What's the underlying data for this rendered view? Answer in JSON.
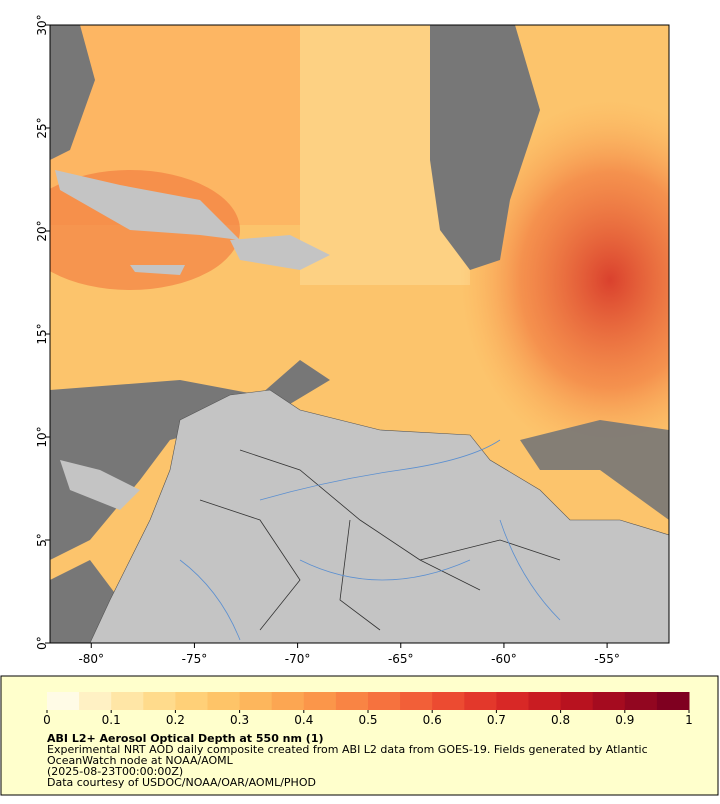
{
  "map": {
    "xlim": [
      -82,
      -52
    ],
    "ylim": [
      0,
      30
    ],
    "xticks": [
      {
        "value": -80,
        "label": "-80°"
      },
      {
        "value": -75,
        "label": "-75°"
      },
      {
        "value": -70,
        "label": "-70°"
      },
      {
        "value": -65,
        "label": "-65°"
      },
      {
        "value": -60,
        "label": "-60°"
      },
      {
        "value": -55,
        "label": "-55°"
      }
    ],
    "yticks": [
      {
        "value": 0,
        "label": "0°"
      },
      {
        "value": 5,
        "label": "5°"
      },
      {
        "value": 10,
        "label": "10°"
      },
      {
        "value": 15,
        "label": "15°"
      },
      {
        "value": 20,
        "label": "20°"
      },
      {
        "value": 25,
        "label": "25°"
      },
      {
        "value": 30,
        "label": "30°"
      }
    ],
    "colorbar": {
      "lim": [
        0,
        1
      ],
      "ticks": [
        0,
        0.1,
        0.2,
        0.3,
        0.4,
        0.5,
        0.6,
        0.7,
        0.8,
        0.9,
        1
      ],
      "colors": [
        "#fffbe6",
        "#fff1c4",
        "#ffe6a6",
        "#ffdb8c",
        "#ffd078",
        "#fec468",
        "#fdb65c",
        "#fca652",
        "#fb964a",
        "#f98444",
        "#f6723e",
        "#f25f38",
        "#ec4b31",
        "#e3382b",
        "#d82826",
        "#c91c22",
        "#b8121f",
        "#a50b1f",
        "#920620",
        "#7f0020"
      ]
    }
  },
  "caption": {
    "title": "ABI L2+ Aerosol Optical Depth at 550 nm (1)",
    "lines": [
      "Experimental NRT AOD daily composite created from ABI L2 data from GOES-19. Fields generated by Atlantic",
      "OceanWatch node at NOAA/AOML",
      "(2025-08-23T00:00:00Z)",
      "Data courtesy of USDOC/NOAA/OAR/AOML/PHOD"
    ]
  }
}
